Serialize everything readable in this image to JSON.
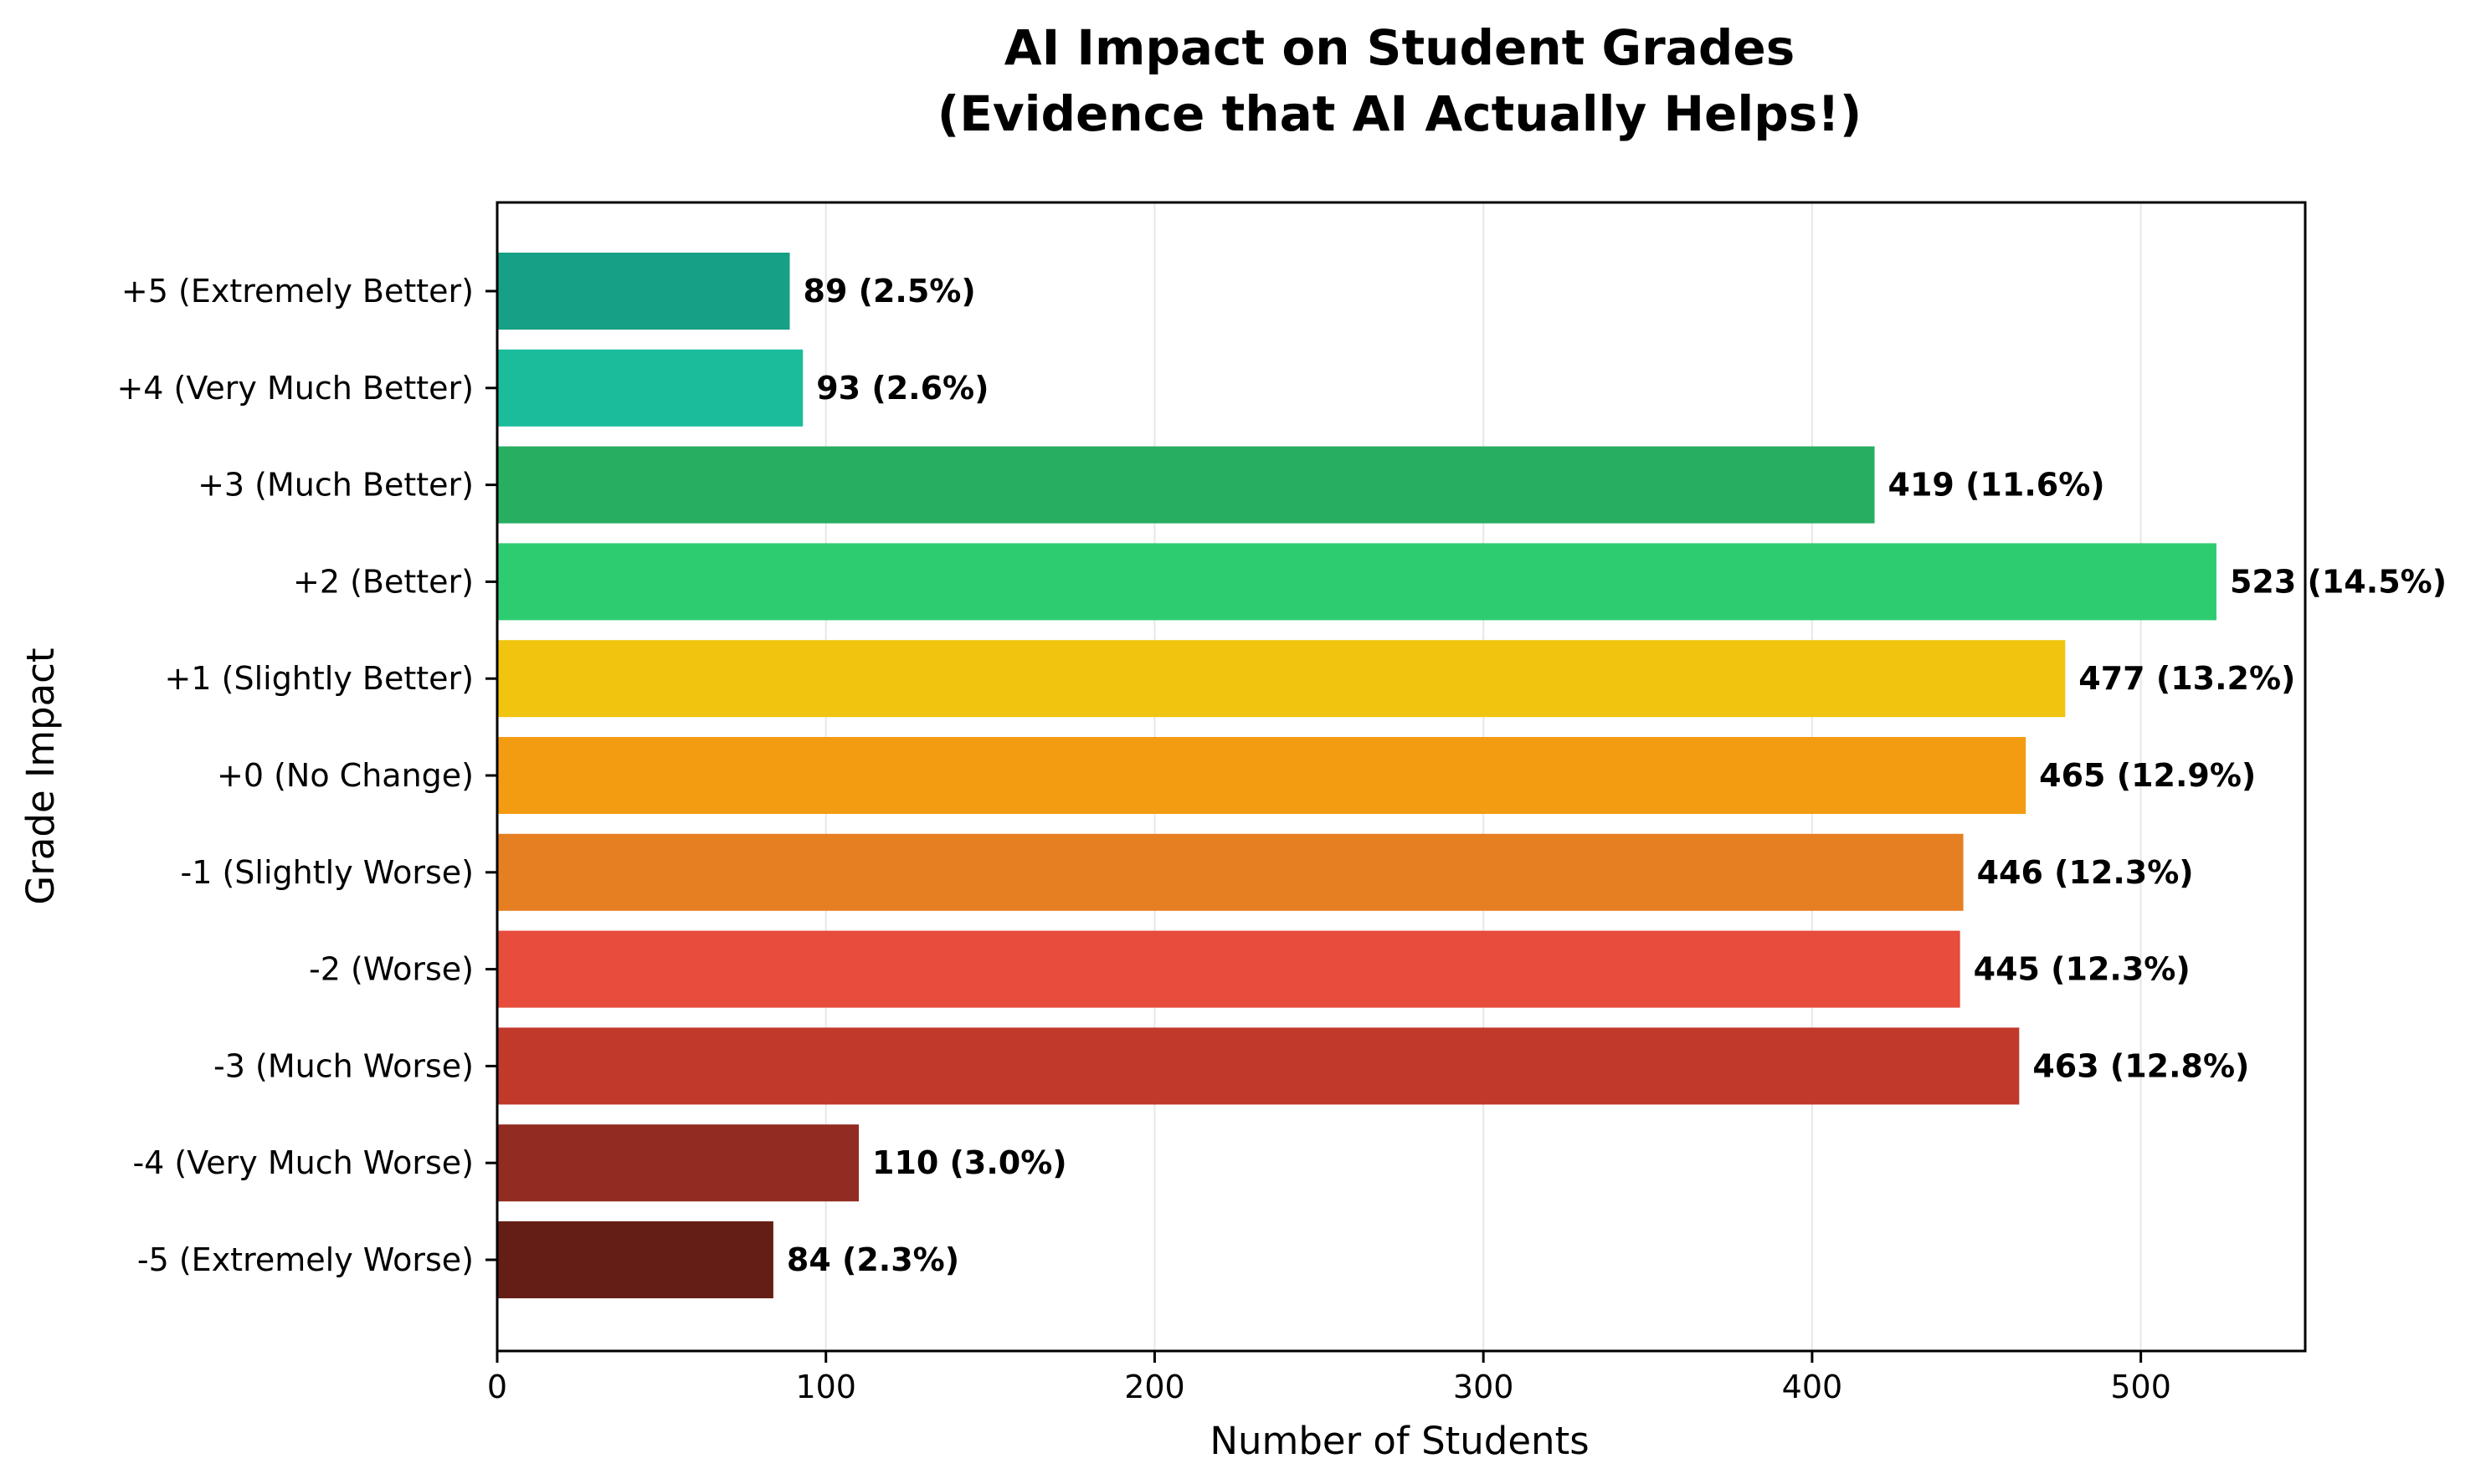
{
  "chart_data": {
    "type": "bar",
    "orientation": "horizontal",
    "title": [
      "AI Impact on Student Grades",
      "(Evidence that AI Actually Helps!)"
    ],
    "xlabel": "Number of Students",
    "ylabel": "Grade Impact",
    "xlim": [
      0,
      550
    ],
    "xticks": [
      0,
      100,
      200,
      300,
      400,
      500
    ],
    "grid": "vertical",
    "categories": [
      "+5 (Extremely Better)",
      "+4 (Very Much Better)",
      "+3 (Much Better)",
      "+2 (Better)",
      "+1 (Slightly Better)",
      "+0 (No Change)",
      "-1 (Slightly Worse)",
      "-2 (Worse)",
      "-3 (Much Worse)",
      "-4 (Very Much Worse)",
      "-5 (Extremely Worse)"
    ],
    "values": [
      89,
      93,
      419,
      523,
      477,
      465,
      446,
      445,
      463,
      110,
      84
    ],
    "data_labels": [
      "89 (2.5%)",
      "93 (2.6%)",
      "419 (11.6%)",
      "523 (14.5%)",
      "477 (13.2%)",
      "465 (12.9%)",
      "446 (12.3%)",
      "445 (12.3%)",
      "463 (12.8%)",
      "110 (3.0%)",
      "84 (2.3%)"
    ],
    "colors": [
      "#16a085",
      "#1abc9c",
      "#27ae60",
      "#2ecc71",
      "#f1c40f",
      "#f39c12",
      "#e67e22",
      "#e74c3c",
      "#c0392b",
      "#922b21",
      "#641e16"
    ]
  }
}
